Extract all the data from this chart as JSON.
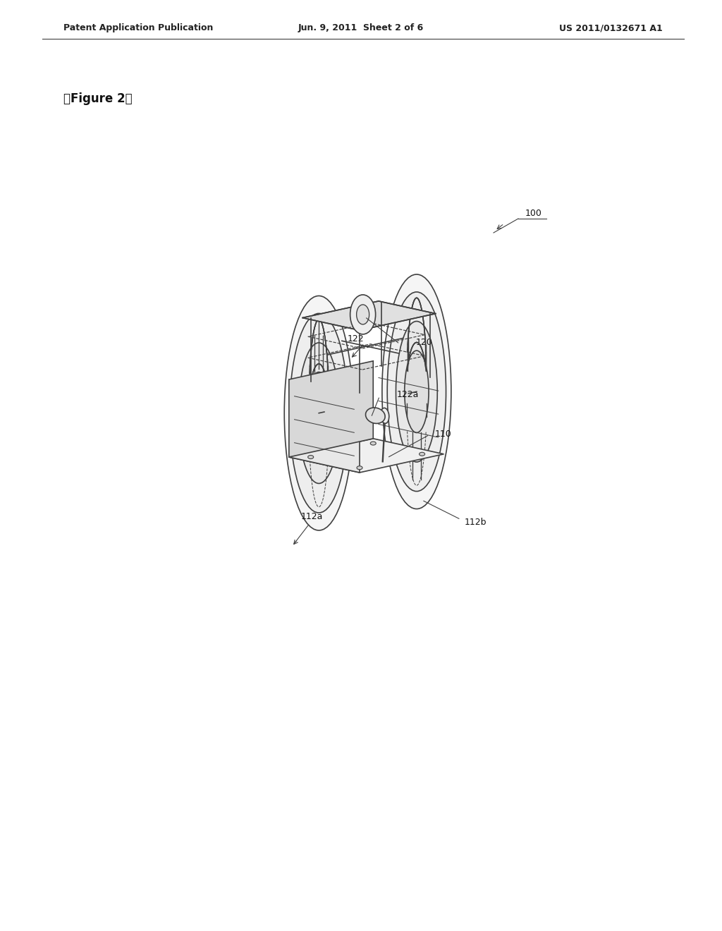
{
  "bg_color": "#ffffff",
  "line_color": "#404040",
  "header_left": "Patent Application Publication",
  "header_mid": "Jun. 9, 2011  Sheet 2 of 6",
  "header_right": "US 2011/0132671 A1",
  "figure_label": "【Figure 2】",
  "label_100": "100",
  "label_110": "110",
  "label_112a": "112a",
  "label_112b": "112b",
  "label_120": "120",
  "label_122": "122",
  "label_122a": "122a"
}
